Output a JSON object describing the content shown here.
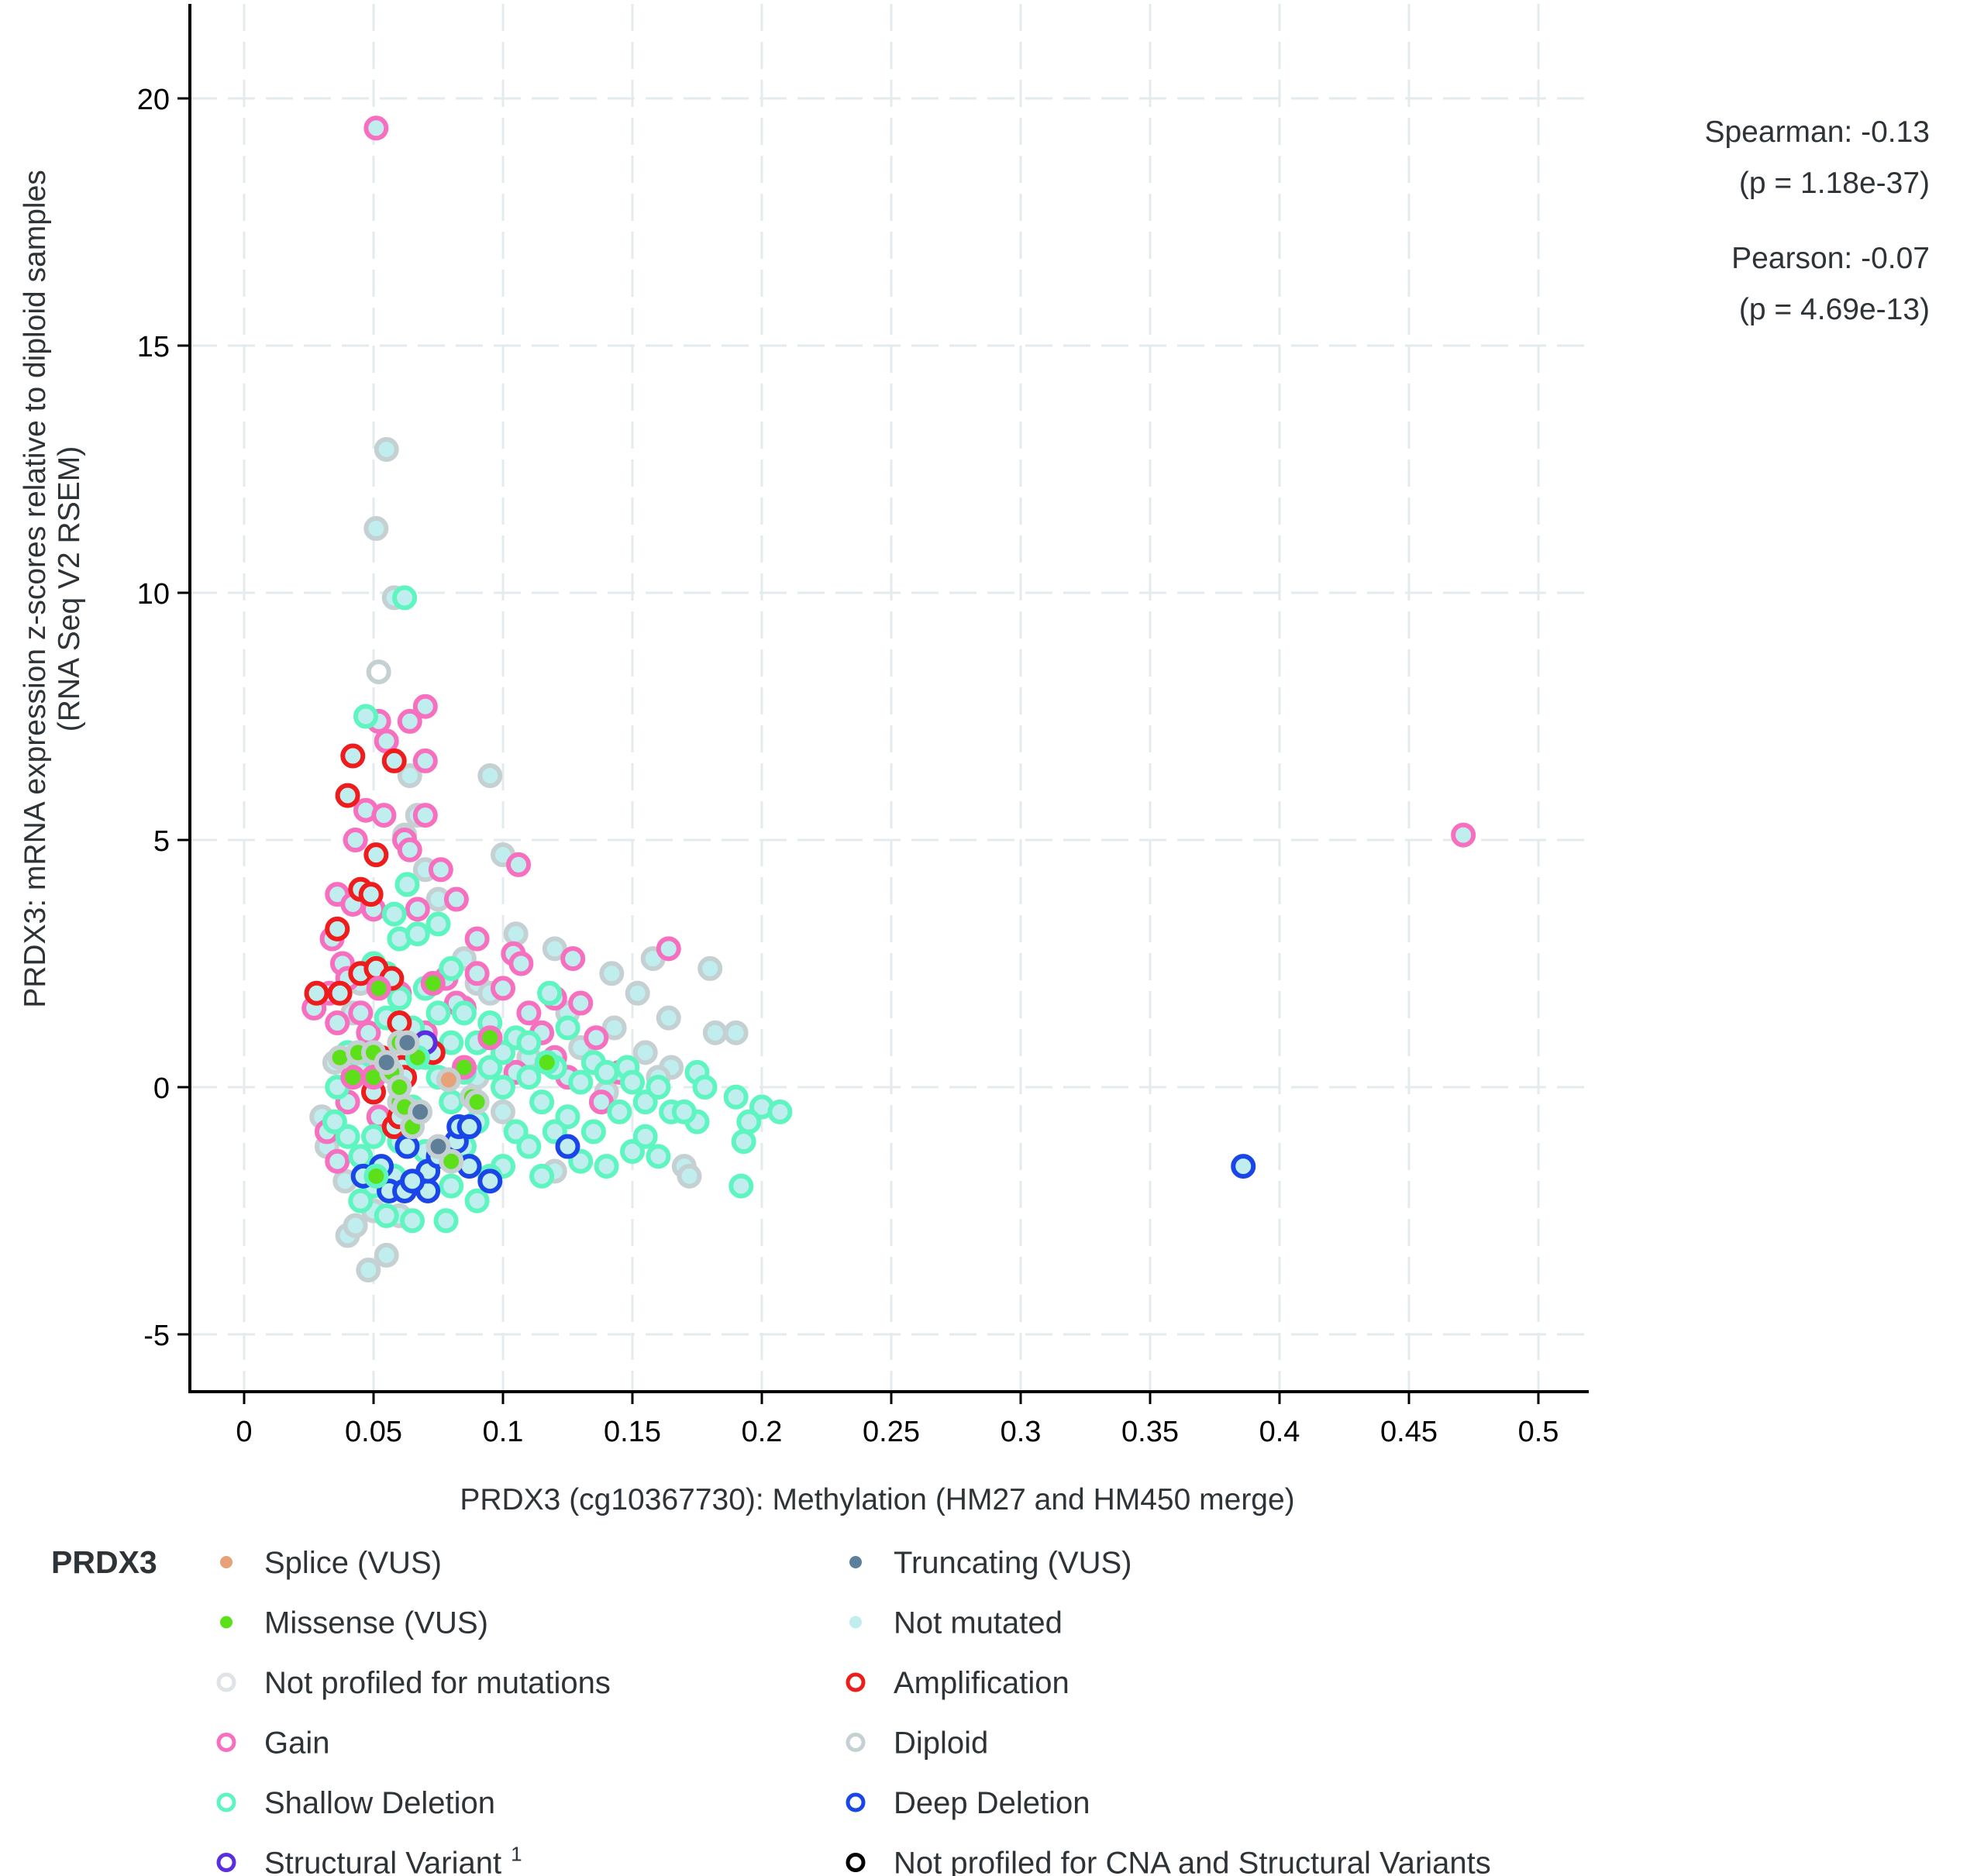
{
  "chart_data": {
    "type": "scatter",
    "title": "",
    "xlabel": "PRDX3 (cg10367730): Methylation (HM27 and HM450 merge)",
    "ylabel_line1": "PRDX3: mRNA expression z-scores relative to diploid samples",
    "ylabel_line2": "(RNA Seq V2 RSEM)",
    "xlim": [
      -0.02,
      0.51
    ],
    "ylim": [
      -6,
      22
    ],
    "x_ticks": [
      0,
      0.05,
      0.1,
      0.15,
      0.2,
      0.25,
      0.3,
      0.35,
      0.4,
      0.45,
      0.5
    ],
    "x_tick_labels": [
      "0",
      "0.05",
      "0.1",
      "0.15",
      "0.2",
      "0.25",
      "0.3",
      "0.35",
      "0.4",
      "0.45",
      "0.5"
    ],
    "y_ticks": [
      -5,
      0,
      5,
      10,
      15,
      20
    ],
    "y_tick_labels": [
      "-5",
      "0",
      "5",
      "10",
      "15",
      "20"
    ],
    "grid": true,
    "stats": {
      "spearman": "Spearman: -0.13",
      "spearman_p": "(p = 1.18e-37)",
      "pearson": "Pearson: -0.07",
      "pearson_p": "(p = 4.69e-13)"
    },
    "legend": {
      "title": "PRDX3",
      "placement": "bottom",
      "items": [
        {
          "label": "Splice (VUS)",
          "kind": "fill",
          "color": "#e8a27a"
        },
        {
          "label": "Truncating (VUS)",
          "kind": "fill",
          "color": "#5f7f99"
        },
        {
          "label": "Missense (VUS)",
          "kind": "fill",
          "color": "#5be01a"
        },
        {
          "label": "Not mutated",
          "kind": "fill",
          "color": "#c0eeee"
        },
        {
          "label": "Not profiled for mutations",
          "kind": "ring",
          "color": "#dde3e6"
        },
        {
          "label": "Amplification",
          "kind": "ring",
          "color": "#ee1c1c"
        },
        {
          "label": "Gain",
          "kind": "ring",
          "color": "#f76fbf"
        },
        {
          "label": "Diploid",
          "kind": "ring",
          "color": "#c5d0d2"
        },
        {
          "label": "Shallow Deletion",
          "kind": "ring",
          "color": "#5ff5c0"
        },
        {
          "label": "Deep Deletion",
          "kind": "ring",
          "color": "#1a46e8"
        },
        {
          "label": "Structural Variant",
          "sup": "1",
          "kind": "ring",
          "color": "#5a2fe0"
        },
        {
          "label": "Not profiled for CNA and Structural Variants",
          "kind": "ring",
          "color": "#000000"
        }
      ]
    },
    "colors": {
      "diploid": "#c5d0d2",
      "gain": "#f76fbf",
      "shallow": "#5ff5c0",
      "amp": "#ee1c1c",
      "deep": "#1a46e8",
      "sv": "#5a2fe0",
      "notmut_fill": "#c0eeee",
      "notprof_fill": "#ffffff",
      "missense": "#5be01a",
      "truncating": "#5f7f99",
      "splice": "#e8a27a"
    },
    "series": [
      {
        "name": "Diploid",
        "cna": "diploid",
        "points": [
          [
            0.055,
            12.9
          ],
          [
            0.051,
            11.3
          ],
          [
            0.058,
            9.9
          ],
          [
            0.095,
            6.3
          ],
          [
            0.1,
            4.7
          ],
          [
            0.062,
            5.1
          ],
          [
            0.067,
            5.5
          ],
          [
            0.064,
            6.3
          ],
          [
            0.09,
            2.1
          ],
          [
            0.095,
            1.9
          ],
          [
            0.105,
            3.1
          ],
          [
            0.12,
            2.8
          ],
          [
            0.142,
            2.3
          ],
          [
            0.152,
            1.9
          ],
          [
            0.158,
            2.6
          ],
          [
            0.164,
            1.4
          ],
          [
            0.18,
            2.4
          ],
          [
            0.182,
            1.1
          ],
          [
            0.19,
            1.1
          ],
          [
            0.143,
            1.2
          ],
          [
            0.125,
            1.5
          ],
          [
            0.11,
            0.6
          ],
          [
            0.13,
            0.8
          ],
          [
            0.155,
            0.7
          ],
          [
            0.165,
            0.4
          ],
          [
            0.17,
            -1.6
          ],
          [
            0.172,
            -1.8
          ],
          [
            0.12,
            -1.7
          ],
          [
            0.055,
            -3.4
          ],
          [
            0.048,
            -3.7
          ],
          [
            0.04,
            -3.0
          ],
          [
            0.043,
            -2.8
          ],
          [
            0.032,
            -1.2
          ],
          [
            0.03,
            -0.6
          ],
          [
            0.035,
            0.5
          ],
          [
            0.05,
            -2.5
          ],
          [
            0.06,
            -2.6
          ],
          [
            0.07,
            4.4
          ],
          [
            0.075,
            3.8
          ],
          [
            0.085,
            2.6
          ],
          [
            0.1,
            -0.5
          ],
          [
            0.08,
            -1.4
          ],
          [
            0.09,
            0.2
          ],
          [
            0.14,
            -0.1
          ],
          [
            0.16,
            0.2
          ],
          [
            0.045,
            2.1
          ],
          [
            0.042,
            1.5
          ],
          [
            0.039,
            -1.9
          ]
        ]
      },
      {
        "name": "Gain",
        "cna": "gain",
        "points": [
          [
            0.051,
            19.4
          ],
          [
            0.471,
            5.1
          ],
          [
            0.07,
            7.7
          ],
          [
            0.064,
            7.4
          ],
          [
            0.07,
            6.6
          ],
          [
            0.052,
            7.4
          ],
          [
            0.055,
            7.0
          ],
          [
            0.047,
            5.6
          ],
          [
            0.054,
            5.5
          ],
          [
            0.07,
            5.5
          ],
          [
            0.062,
            5.0
          ],
          [
            0.064,
            4.8
          ],
          [
            0.043,
            5.0
          ],
          [
            0.106,
            4.5
          ],
          [
            0.076,
            4.4
          ],
          [
            0.082,
            3.8
          ],
          [
            0.036,
            3.9
          ],
          [
            0.042,
            3.7
          ],
          [
            0.05,
            3.6
          ],
          [
            0.067,
            3.6
          ],
          [
            0.09,
            3.0
          ],
          [
            0.104,
            2.7
          ],
          [
            0.107,
            2.5
          ],
          [
            0.127,
            2.6
          ],
          [
            0.164,
            2.8
          ],
          [
            0.034,
            3.0
          ],
          [
            0.038,
            2.5
          ],
          [
            0.04,
            2.2
          ],
          [
            0.027,
            1.6
          ],
          [
            0.033,
            1.9
          ],
          [
            0.045,
            1.5
          ],
          [
            0.06,
            1.9
          ],
          [
            0.078,
            2.2
          ],
          [
            0.085,
            1.6
          ],
          [
            0.09,
            2.3
          ],
          [
            0.1,
            2.0
          ],
          [
            0.11,
            1.5
          ],
          [
            0.115,
            1.1
          ],
          [
            0.12,
            1.8
          ],
          [
            0.13,
            1.7
          ],
          [
            0.136,
            1.0
          ],
          [
            0.095,
            1.0
          ],
          [
            0.082,
            1.7
          ],
          [
            0.07,
            1.1
          ],
          [
            0.105,
            0.3
          ],
          [
            0.12,
            0.6
          ],
          [
            0.125,
            0.2
          ],
          [
            0.145,
            0.3
          ],
          [
            0.04,
            -0.3
          ],
          [
            0.032,
            -0.9
          ],
          [
            0.036,
            -1.5
          ],
          [
            0.045,
            0.3
          ],
          [
            0.052,
            -0.6
          ],
          [
            0.138,
            -0.3
          ],
          [
            0.048,
            1.1
          ],
          [
            0.036,
            1.3
          ]
        ]
      },
      {
        "name": "Shallow Deletion",
        "cna": "shallow",
        "points": [
          [
            0.062,
            9.9
          ],
          [
            0.047,
            7.5
          ],
          [
            0.063,
            4.1
          ],
          [
            0.058,
            3.5
          ],
          [
            0.06,
            3.0
          ],
          [
            0.067,
            3.1
          ],
          [
            0.075,
            3.3
          ],
          [
            0.08,
            2.4
          ],
          [
            0.05,
            2.5
          ],
          [
            0.055,
            2.3
          ],
          [
            0.07,
            2.0
          ],
          [
            0.085,
            1.5
          ],
          [
            0.095,
            1.3
          ],
          [
            0.105,
            1.0
          ],
          [
            0.118,
            1.9
          ],
          [
            0.125,
            1.2
          ],
          [
            0.135,
            0.5
          ],
          [
            0.148,
            0.4
          ],
          [
            0.155,
            -0.3
          ],
          [
            0.16,
            0.0
          ],
          [
            0.165,
            -0.5
          ],
          [
            0.175,
            0.3
          ],
          [
            0.178,
            0.0
          ],
          [
            0.19,
            -0.2
          ],
          [
            0.2,
            -0.4
          ],
          [
            0.207,
            -0.5
          ],
          [
            0.195,
            -0.7
          ],
          [
            0.193,
            -1.1
          ],
          [
            0.192,
            -2.0
          ],
          [
            0.175,
            -0.7
          ],
          [
            0.17,
            -0.5
          ],
          [
            0.16,
            -1.4
          ],
          [
            0.15,
            -1.3
          ],
          [
            0.14,
            -1.6
          ],
          [
            0.13,
            -1.5
          ],
          [
            0.115,
            -1.8
          ],
          [
            0.1,
            -1.6
          ],
          [
            0.09,
            -2.3
          ],
          [
            0.08,
            -2.0
          ],
          [
            0.078,
            -2.7
          ],
          [
            0.065,
            -2.7
          ],
          [
            0.055,
            -2.6
          ],
          [
            0.05,
            -2.0
          ],
          [
            0.045,
            -1.4
          ],
          [
            0.04,
            -1.0
          ],
          [
            0.035,
            -0.7
          ],
          [
            0.036,
            0.0
          ],
          [
            0.04,
            0.7
          ],
          [
            0.045,
            0.3
          ],
          [
            0.05,
            -0.1
          ],
          [
            0.055,
            0.5
          ],
          [
            0.06,
            0.1
          ],
          [
            0.065,
            -0.4
          ],
          [
            0.07,
            0.6
          ],
          [
            0.075,
            0.2
          ],
          [
            0.08,
            -0.3
          ],
          [
            0.085,
            0.3
          ],
          [
            0.09,
            -0.7
          ],
          [
            0.095,
            0.4
          ],
          [
            0.1,
            0.0
          ],
          [
            0.105,
            -0.9
          ],
          [
            0.11,
            0.2
          ],
          [
            0.115,
            -0.3
          ],
          [
            0.12,
            0.4
          ],
          [
            0.125,
            -0.6
          ],
          [
            0.13,
            0.1
          ],
          [
            0.135,
            -0.9
          ],
          [
            0.14,
            0.3
          ],
          [
            0.145,
            -0.5
          ],
          [
            0.15,
            0.1
          ],
          [
            0.155,
            -1.0
          ],
          [
            0.06,
            -1.1
          ],
          [
            0.07,
            -1.3
          ],
          [
            0.085,
            -1.2
          ],
          [
            0.095,
            -1.8
          ],
          [
            0.11,
            -1.2
          ],
          [
            0.12,
            -0.9
          ],
          [
            0.065,
            1.2
          ],
          [
            0.075,
            1.5
          ],
          [
            0.09,
            0.9
          ],
          [
            0.1,
            0.7
          ],
          [
            0.11,
            0.9
          ],
          [
            0.055,
            1.4
          ],
          [
            0.06,
            1.8
          ],
          [
            0.08,
            0.9
          ],
          [
            0.05,
            -1.0
          ],
          [
            0.045,
            -2.3
          ],
          [
            0.058,
            -1.8
          ]
        ]
      },
      {
        "name": "Amplification",
        "cna": "amp",
        "points": [
          [
            0.042,
            6.7
          ],
          [
            0.058,
            6.6
          ],
          [
            0.04,
            5.9
          ],
          [
            0.051,
            4.7
          ],
          [
            0.045,
            4.0
          ],
          [
            0.049,
            3.9
          ],
          [
            0.036,
            3.2
          ],
          [
            0.028,
            1.9
          ],
          [
            0.037,
            1.9
          ],
          [
            0.045,
            2.3
          ],
          [
            0.051,
            2.4
          ],
          [
            0.057,
            2.2
          ],
          [
            0.06,
            1.3
          ],
          [
            0.073,
            0.7
          ],
          [
            0.053,
            0.6
          ],
          [
            0.05,
            -0.1
          ],
          [
            0.061,
            0.4
          ],
          [
            0.058,
            -0.8
          ],
          [
            0.062,
            0.2
          ],
          [
            0.06,
            -0.6
          ]
        ]
      },
      {
        "name": "Deep Deletion",
        "cna": "deep",
        "points": [
          [
            0.386,
            -1.6
          ],
          [
            0.125,
            -1.2
          ],
          [
            0.046,
            -1.8
          ],
          [
            0.053,
            -1.6
          ],
          [
            0.056,
            -2.1
          ],
          [
            0.062,
            -2.1
          ],
          [
            0.063,
            -1.2
          ],
          [
            0.071,
            -2.1
          ],
          [
            0.071,
            -1.7
          ],
          [
            0.075,
            -1.4
          ],
          [
            0.082,
            -1.1
          ],
          [
            0.083,
            -0.8
          ],
          [
            0.087,
            -0.8
          ],
          [
            0.087,
            -1.6
          ],
          [
            0.095,
            -1.9
          ],
          [
            0.065,
            -1.9
          ]
        ]
      },
      {
        "name": "Structural Variant",
        "cna": "sv",
        "points": [
          [
            0.07,
            0.9
          ]
        ]
      }
    ],
    "mutations": [
      {
        "name": "Missense (VUS)",
        "type": "missense",
        "cna": "gain",
        "points": [
          [
            0.052,
            2.0
          ],
          [
            0.073,
            2.1
          ],
          [
            0.095,
            1.0
          ],
          [
            0.085,
            0.4
          ],
          [
            0.042,
            0.2
          ],
          [
            0.05,
            0.2
          ]
        ]
      },
      {
        "name": "Missense (VUS)",
        "type": "missense",
        "cna": "diploid",
        "points": [
          [
            0.037,
            0.6
          ],
          [
            0.044,
            0.7
          ],
          [
            0.05,
            0.7
          ],
          [
            0.06,
            0.9
          ],
          [
            0.057,
            0.3
          ],
          [
            0.06,
            -0.3
          ],
          [
            0.062,
            -0.4
          ],
          [
            0.065,
            -0.8
          ],
          [
            0.08,
            -1.5
          ],
          [
            0.088,
            -0.2
          ],
          [
            0.09,
            -0.3
          ],
          [
            0.06,
            0.0
          ]
        ]
      },
      {
        "name": "Missense (VUS)",
        "type": "missense",
        "cna": "shallow",
        "points": [
          [
            0.051,
            -1.8
          ],
          [
            0.067,
            0.6
          ],
          [
            0.117,
            0.5
          ]
        ]
      },
      {
        "name": "Truncating (VUS)",
        "type": "truncating",
        "cna": "diploid",
        "points": [
          [
            0.063,
            0.9
          ],
          [
            0.055,
            0.5
          ],
          [
            0.068,
            -0.5
          ],
          [
            0.075,
            -1.2
          ]
        ]
      },
      {
        "name": "Splice (VUS)",
        "type": "splice",
        "cna": "diploid",
        "points": [
          [
            0.079,
            0.15
          ]
        ]
      },
      {
        "name": "Not profiled for mutations",
        "type": "notprof",
        "cna": "diploid",
        "points": [
          [
            0.052,
            8.4
          ]
        ]
      }
    ]
  }
}
